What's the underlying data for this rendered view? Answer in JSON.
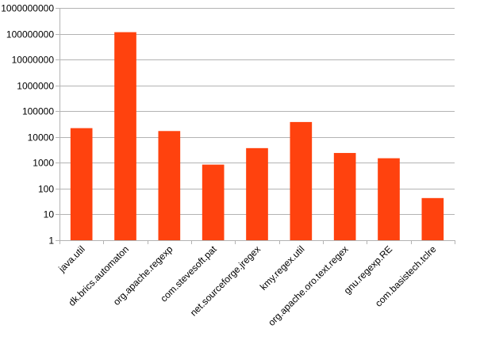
{
  "chart_data": {
    "type": "bar",
    "title": "",
    "xlabel": "",
    "ylabel": "",
    "y_scale": "log",
    "ylim": [
      1,
      1000000000
    ],
    "y_ticks": [
      "1",
      "10",
      "100",
      "1000",
      "10000",
      "100000",
      "1000000",
      "10000000",
      "100000000",
      "1000000000"
    ],
    "grid": "horizontal",
    "legend": "none",
    "bar_color": "#ff420e",
    "categories": [
      "java.util",
      "dk.brics.automaton",
      "org.apache.regexp",
      "com.stevesoft.pat",
      "net.sourceforge.jregex",
      "kmy.regex.util",
      "org.apache.oro.text.regex",
      "gnu.regexp.RE",
      "com.basistech.tclre"
    ],
    "values": [
      22000,
      115000000,
      17000,
      850,
      3700,
      38000,
      2400,
      1500,
      43
    ]
  }
}
